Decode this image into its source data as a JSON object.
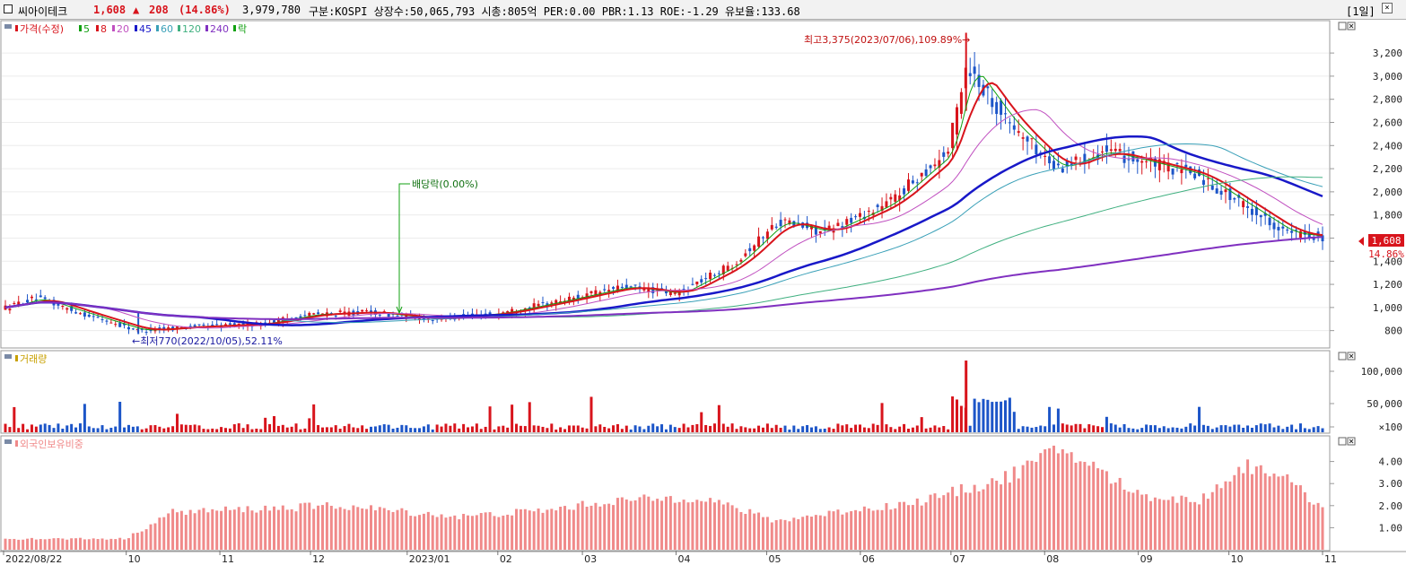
{
  "header": {
    "stock_name": "씨아이테크",
    "price": "1,608",
    "change_arrow": "▲",
    "change": "208",
    "change_pct": "(14.86%)",
    "volume": "3,979,780",
    "info": "구분:KOSPI 상장수:50,065,793 시총:805억 PER:0.00 PBR:1.13 ROE:-1.29 유보율:133.68",
    "period": "[1일]"
  },
  "colors": {
    "up": "#d8141c",
    "down": "#1c55c8",
    "ma5": "#10a010",
    "ma8": "#d8141c",
    "ma20": "#c050c0",
    "ma45": "#1818c8",
    "ma60": "#3aa0b8",
    "ma120": "#40b080",
    "ma240": "#8030c0",
    "foreign": "#f08a8a"
  },
  "legend": {
    "price": "가격(수정)",
    "ma5": "5",
    "ma8": "8",
    "ma20": "20",
    "ma45": "45",
    "ma60": "60",
    "ma120": "120",
    "ma240": "240",
    "fall": "락"
  },
  "annotations": {
    "high": "최고3,375(2023/07/06),109.89%→",
    "low": "←최저770(2022/10/05),52.11%",
    "dividend": "배당락(0.00%)"
  },
  "price_box": {
    "price": "1,608",
    "pct": "14.86%"
  },
  "volume_label": "거래량",
  "foreign_label": "외국인보유비중",
  "x_axis": [
    "2022/08/22",
    "10",
    "11",
    "12",
    "2023/01",
    "02",
    "03",
    "04",
    "05",
    "06",
    "07",
    "08",
    "09",
    "10",
    "11"
  ],
  "chart_data": [
    {
      "type": "candlestick",
      "title": "가격(수정)",
      "y_ticks": [
        800,
        1000,
        1200,
        1400,
        1600,
        1800,
        2000,
        2200,
        2400,
        2600,
        2800,
        3000,
        3200
      ],
      "ylim": [
        650,
        3480
      ],
      "x": [
        "2022-08-22",
        "2022-09-01",
        "2022-09-15",
        "2022-10-05",
        "2022-10-20",
        "2022-11-15",
        "2022-12-01",
        "2022-12-20",
        "2023-01-10",
        "2023-02-01",
        "2023-02-20",
        "2023-03-15",
        "2023-04-01",
        "2023-04-20",
        "2023-05-05",
        "2023-05-20",
        "2023-06-10",
        "2023-06-30",
        "2023-07-06",
        "2023-07-20",
        "2023-08-05",
        "2023-08-20",
        "2023-09-05",
        "2023-09-20",
        "2023-10-05",
        "2023-10-20",
        "2023-11-01"
      ],
      "close": [
        1000,
        1080,
        960,
        800,
        830,
        860,
        940,
        960,
        900,
        950,
        1050,
        1180,
        1120,
        1380,
        1750,
        1650,
        1900,
        2350,
        3100,
        2600,
        2200,
        2350,
        2250,
        2150,
        1900,
        1650,
        1608
      ],
      "high": 3375,
      "low": 770
    },
    {
      "type": "bar",
      "title": "거래량",
      "y_ticks": [
        "100,000",
        "50,000",
        "×100"
      ]
    },
    {
      "type": "bar",
      "title": "외국인보유비중",
      "y_ticks": [
        "4.00",
        "3.00",
        "2.00",
        "1.00"
      ],
      "ylim": [
        0,
        5
      ]
    }
  ]
}
